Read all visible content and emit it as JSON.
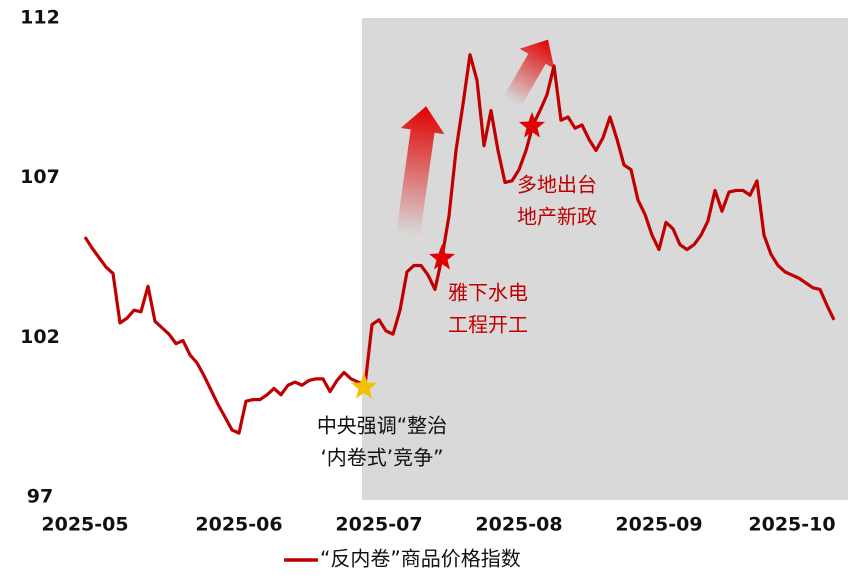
{
  "chart_data": {
    "type": "line",
    "categories": [
      "2025-05",
      null,
      null,
      null,
      null,
      null,
      null,
      null,
      null,
      null,
      null,
      null,
      null,
      null,
      null,
      null,
      null,
      null,
      null,
      null,
      null,
      null,
      "2025-06",
      null,
      null,
      null,
      null,
      null,
      null,
      null,
      null,
      null,
      null,
      null,
      null,
      null,
      null,
      null,
      null,
      null,
      null,
      null,
      "2025-07",
      null,
      null,
      null,
      null,
      null,
      null,
      null,
      null,
      null,
      null,
      null,
      null,
      null,
      null,
      null,
      null,
      null,
      null,
      null,
      "2025-08",
      null,
      null,
      null,
      null,
      null,
      null,
      null,
      null,
      null,
      null,
      null,
      null,
      null,
      null,
      null,
      null,
      null,
      null,
      null,
      "2025-09",
      null,
      null,
      null,
      null,
      null,
      null,
      null,
      null,
      null,
      null,
      null,
      null,
      null,
      null,
      null,
      null,
      null,
      null,
      "2025-10",
      null,
      null,
      null,
      null,
      null,
      null
    ],
    "series": [
      {
        "name": "“反内卷”商品价格指数",
        "color": "#c00000",
        "values": [
          105.14,
          104.8,
          104.5,
          104.2,
          104.0,
          102.45,
          102.6,
          102.85,
          102.8,
          103.6,
          102.5,
          102.3,
          102.1,
          101.8,
          101.9,
          101.45,
          101.2,
          100.8,
          100.35,
          99.9,
          99.5,
          99.1,
          99.0,
          100.0,
          100.05,
          100.05,
          100.2,
          100.4,
          100.2,
          100.5,
          100.6,
          100.5,
          100.65,
          100.7,
          100.7,
          100.3,
          100.65,
          100.9,
          100.7,
          100.6,
          100.5,
          102.4,
          102.55,
          102.2,
          102.1,
          102.85,
          104.05,
          104.25,
          104.25,
          103.95,
          103.5,
          104.5,
          105.8,
          107.85,
          109.3,
          110.85,
          110.05,
          108.0,
          109.1,
          107.85,
          106.85,
          106.9,
          107.25,
          107.85,
          108.65,
          109.1,
          109.6,
          110.5,
          108.8,
          108.9,
          108.55,
          108.65,
          108.2,
          107.85,
          108.25,
          108.9,
          108.2,
          107.4,
          107.25,
          106.3,
          105.85,
          105.2,
          104.75,
          105.6,
          105.4,
          104.9,
          104.75,
          104.9,
          105.2,
          105.65,
          106.6,
          105.95,
          106.55,
          106.6,
          106.6,
          106.45,
          106.9,
          105.2,
          104.6,
          104.25,
          104.05,
          103.95,
          103.85,
          103.7,
          103.55,
          103.5,
          103.0,
          102.55
        ]
      }
    ],
    "ylim": [
      97,
      112
    ],
    "yticks": [
      97,
      102,
      107,
      112
    ],
    "grid": false,
    "legend": "bottom",
    "annotations": [
      {
        "lines": [
          "中央强调“整治",
          "‘内卷式’竞争”"
        ],
        "color": "#111111"
      },
      {
        "lines": [
          "雅下水电",
          "工程开工"
        ],
        "color": "#c00000"
      },
      {
        "lines": [
          "多地出台",
          "地产新政"
        ],
        "color": "#c00000"
      }
    ]
  }
}
